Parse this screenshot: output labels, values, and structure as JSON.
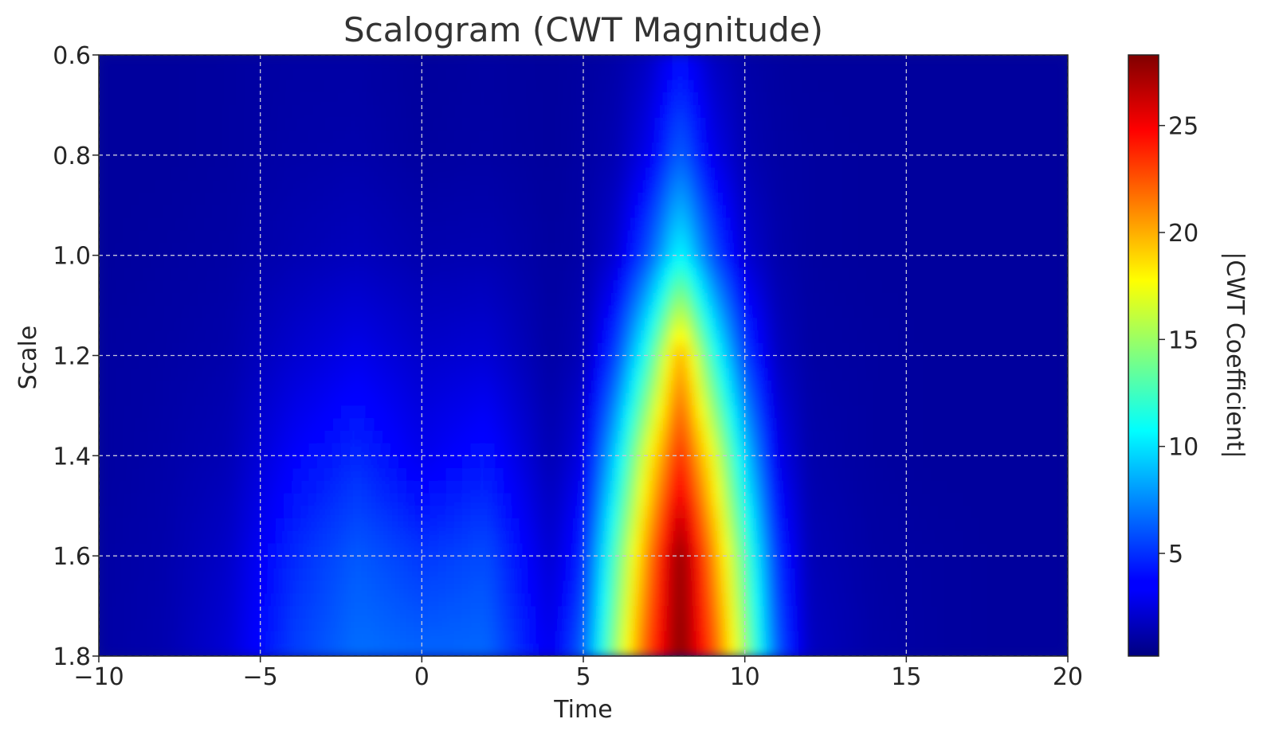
{
  "chart_data": {
    "type": "heatmap",
    "title": "Scalogram (CWT Magnitude)",
    "xlabel": "Time",
    "ylabel": "Scale",
    "xlim": [
      -10,
      20
    ],
    "ylim": [
      0.6,
      1.8
    ],
    "y_inverted": true,
    "xticks": [
      -10,
      -5,
      0,
      5,
      10,
      15,
      20
    ],
    "xtick_labels": [
      "−10",
      "−5",
      "0",
      "5",
      "10",
      "15",
      "20"
    ],
    "yticks": [
      0.6,
      0.8,
      1.0,
      1.2,
      1.4,
      1.6,
      1.8
    ],
    "ytick_labels": [
      "0.6",
      "0.8",
      "1.0",
      "1.2",
      "1.4",
      "1.6",
      "1.8"
    ],
    "grid": true,
    "colormap": "jet",
    "colorbar": {
      "label": "|CWT Coefficient|",
      "vmin": 0.2,
      "vmax": 28.3,
      "ticks": [
        5,
        10,
        15,
        20,
        25
      ],
      "tick_labels": [
        "5",
        "10",
        "15",
        "20",
        "25"
      ]
    },
    "scales": [
      0.6,
      0.8,
      1.0,
      1.2,
      1.4,
      1.6,
      1.8
    ],
    "times": [
      -10,
      -8,
      -6,
      -4,
      -2,
      0,
      2,
      4,
      5,
      6,
      7,
      8,
      9,
      10,
      11,
      12,
      14,
      16,
      18,
      20
    ],
    "z": [
      [
        1.0,
        1.0,
        1.1,
        1.2,
        1.2,
        1.0,
        1.1,
        1.0,
        1.1,
        1.3,
        2.0,
        4.0,
        2.0,
        1.3,
        1.1,
        1.0,
        1.0,
        1.0,
        1.0,
        1.0
      ],
      [
        1.0,
        1.0,
        1.1,
        1.3,
        1.4,
        1.1,
        1.2,
        1.0,
        1.2,
        1.6,
        3.2,
        6.5,
        3.2,
        1.6,
        1.2,
        1.1,
        1.0,
        1.0,
        1.0,
        1.0
      ],
      [
        1.0,
        1.1,
        1.2,
        1.6,
        1.9,
        1.5,
        1.6,
        1.1,
        1.3,
        2.5,
        6.0,
        11.0,
        6.0,
        2.5,
        1.4,
        1.1,
        1.0,
        1.0,
        1.0,
        1.0
      ],
      [
        1.1,
        1.2,
        1.4,
        2.4,
        3.2,
        2.3,
        2.6,
        1.2,
        1.8,
        5.5,
        12.0,
        20.5,
        12.0,
        5.5,
        2.0,
        1.2,
        1.1,
        1.0,
        1.0,
        1.0
      ],
      [
        1.1,
        1.3,
        1.7,
        3.6,
        4.8,
        3.2,
        4.2,
        1.6,
        3.0,
        9.5,
        17.5,
        24.0,
        17.5,
        9.5,
        3.2,
        1.4,
        1.1,
        1.0,
        1.0,
        1.0
      ],
      [
        1.2,
        1.4,
        2.2,
        4.8,
        6.2,
        5.2,
        5.8,
        2.4,
        4.8,
        13.0,
        21.0,
        28.3,
        21.0,
        13.0,
        5.0,
        1.7,
        1.2,
        1.1,
        1.0,
        1.0
      ],
      [
        1.2,
        1.5,
        2.6,
        5.4,
        6.8,
        6.5,
        6.6,
        3.2,
        6.5,
        15.0,
        23.0,
        28.3,
        23.0,
        15.0,
        6.2,
        2.0,
        1.3,
        1.1,
        1.0,
        1.0
      ]
    ]
  }
}
